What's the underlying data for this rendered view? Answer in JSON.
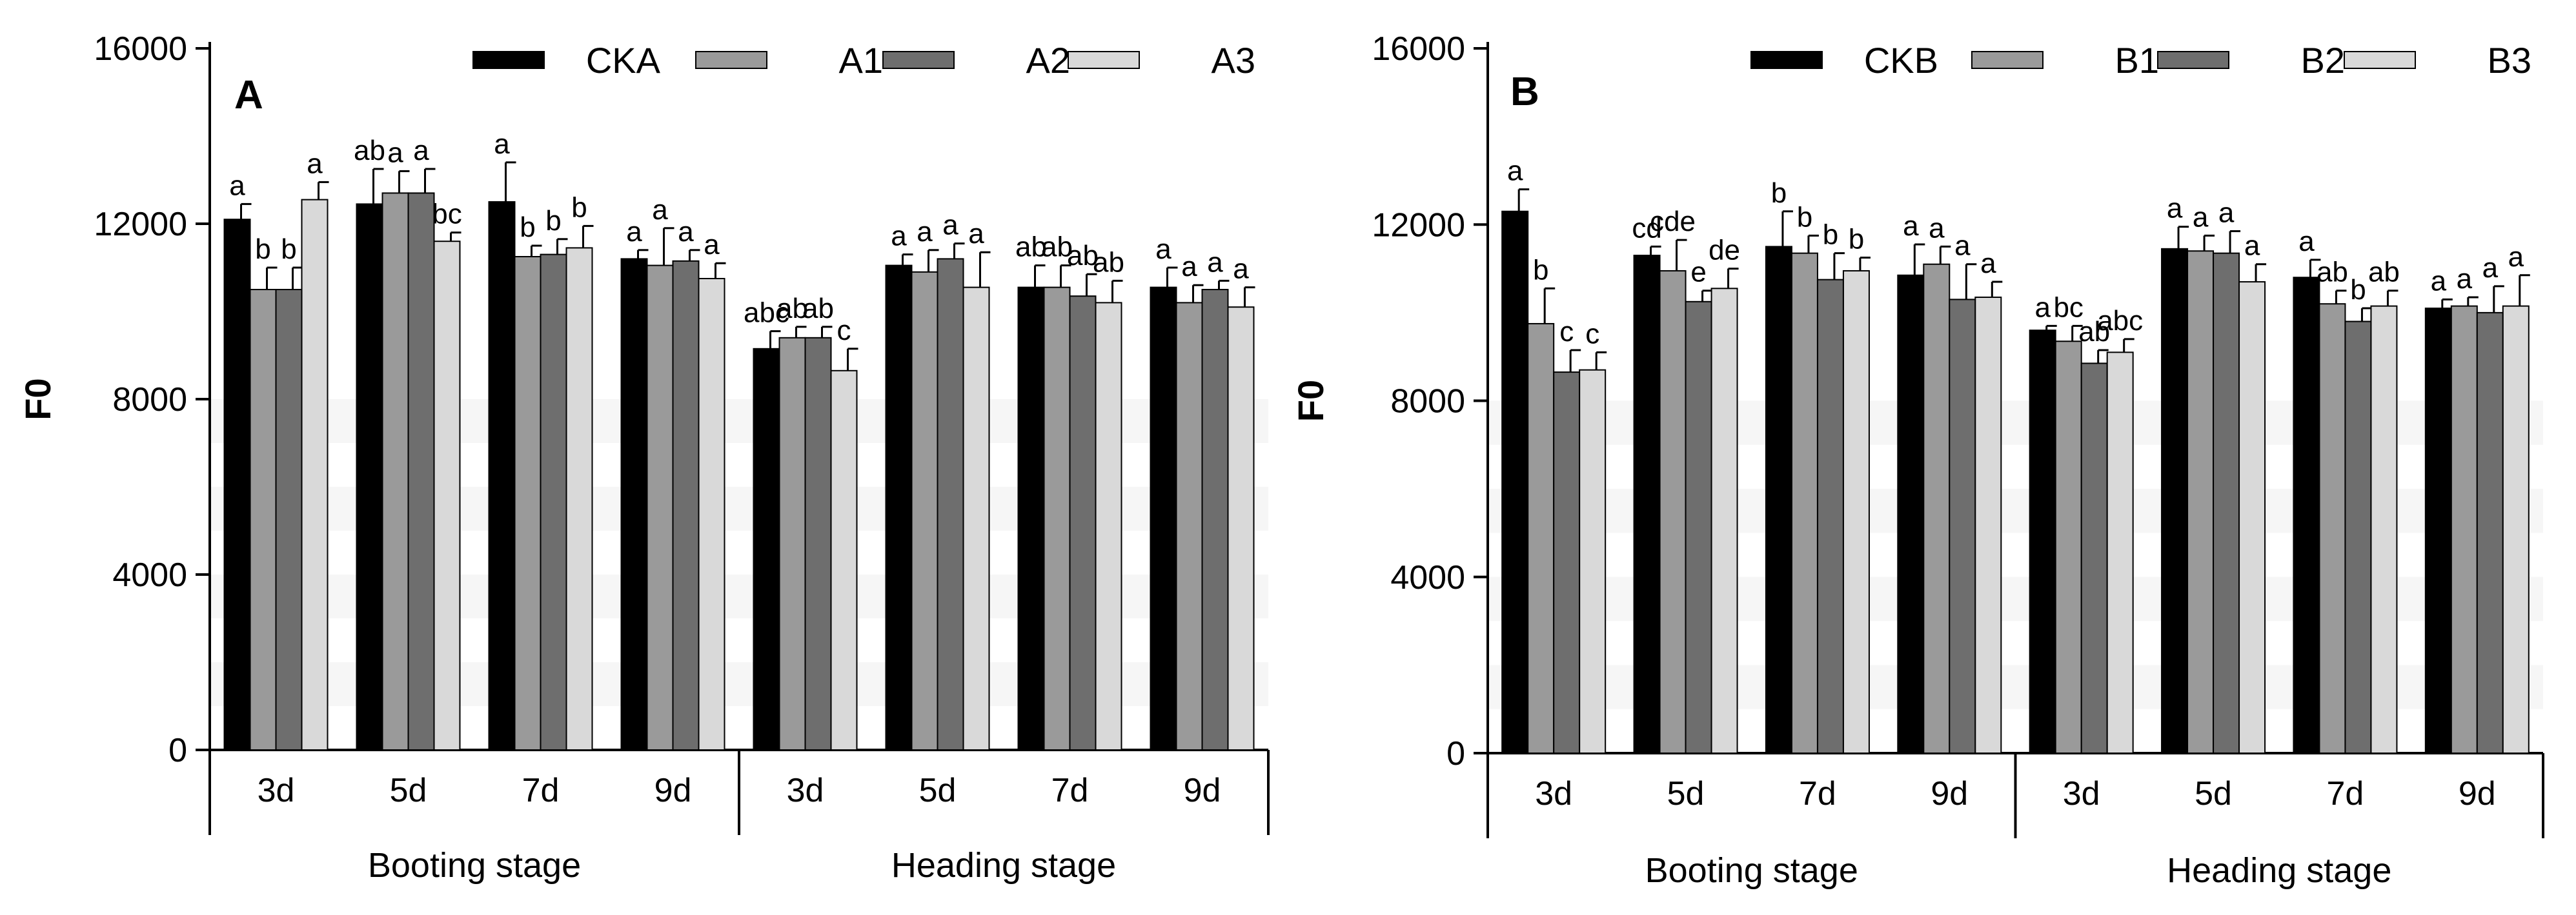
{
  "chart_data": [
    {
      "type": "bar",
      "panel_label": "A",
      "ylabel": "F0",
      "ylim": [
        0,
        16000
      ],
      "yticks": [
        "0",
        "4000",
        "8000",
        "12000",
        "16000"
      ],
      "legend_position": "top-right",
      "categories": [
        "3d",
        "5d",
        "7d",
        "9d",
        "3d",
        "5d",
        "7d",
        "9d"
      ],
      "groups": [
        {
          "label": "Booting stage"
        },
        {
          "label": "Heading stage"
        }
      ],
      "series": [
        {
          "name": "CKA",
          "color": "#000000",
          "values": [
            12100,
            12450,
            12500,
            11200,
            9150,
            11050,
            10550,
            10550
          ],
          "errors": [
            350,
            800,
            900,
            200,
            400,
            250,
            500,
            450
          ],
          "letters": [
            "a",
            "ab",
            "a",
            "a",
            "abc",
            "a",
            "ab",
            "a"
          ]
        },
        {
          "name": "A1",
          "color": "#9a9a9a",
          "values": [
            10500,
            12700,
            11250,
            11050,
            9400,
            10900,
            10550,
            10200
          ],
          "errors": [
            500,
            500,
            250,
            850,
            250,
            500,
            500,
            400
          ],
          "letters": [
            "b",
            "a",
            "b",
            "a",
            "ab",
            "a",
            "ab",
            "a"
          ]
        },
        {
          "name": "A2",
          "color": "#6e6e6e",
          "values": [
            10500,
            12700,
            11300,
            11150,
            9400,
            11200,
            10350,
            10500
          ],
          "errors": [
            500,
            550,
            350,
            250,
            250,
            350,
            500,
            200
          ],
          "letters": [
            "b",
            "a",
            "b",
            "a",
            "ab",
            "a",
            "ab",
            "a"
          ]
        },
        {
          "name": "A3",
          "color": "#d9d9d9",
          "values": [
            12550,
            11600,
            11450,
            10750,
            8650,
            10550,
            10200,
            10100
          ],
          "errors": [
            400,
            200,
            500,
            350,
            500,
            800,
            500,
            450
          ],
          "letters": [
            "a",
            "bc",
            "b",
            "a",
            "c",
            "a",
            "ab",
            "a"
          ]
        }
      ]
    },
    {
      "type": "bar",
      "panel_label": "B",
      "ylabel": "F0",
      "ylim": [
        0,
        16000
      ],
      "yticks": [
        "0",
        "4000",
        "8000",
        "12000",
        "16000"
      ],
      "legend_position": "top-right",
      "categories": [
        "3d",
        "5d",
        "7d",
        "9d",
        "3d",
        "5d",
        "7d",
        "9d"
      ],
      "groups": [
        {
          "label": "Booting stage"
        },
        {
          "label": "Heading stage"
        }
      ],
      "series": [
        {
          "name": "CKB",
          "color": "#000000",
          "values": [
            12300,
            11300,
            11500,
            10850,
            9600,
            11450,
            10800,
            10100
          ],
          "errors": [
            500,
            200,
            800,
            700,
            100,
            500,
            400,
            200
          ],
          "letters": [
            "a",
            "cd",
            "b",
            "a",
            "a",
            "a",
            "a",
            "a"
          ]
        },
        {
          "name": "B1",
          "color": "#9a9a9a",
          "values": [
            9750,
            10950,
            11350,
            11100,
            9350,
            11400,
            10200,
            10150
          ],
          "errors": [
            800,
            700,
            400,
            400,
            350,
            350,
            300,
            200
          ],
          "letters": [
            "b",
            "cde",
            "b",
            "a",
            "bc",
            "a",
            "ab",
            "a"
          ]
        },
        {
          "name": "B2",
          "color": "#6e6e6e",
          "values": [
            8650,
            10250,
            10750,
            10300,
            8850,
            11350,
            9800,
            10000
          ],
          "errors": [
            500,
            250,
            600,
            800,
            300,
            500,
            300,
            600
          ],
          "letters": [
            "c",
            "e",
            "b",
            "a",
            "ab",
            "a",
            "b",
            "a"
          ]
        },
        {
          "name": "B3",
          "color": "#d9d9d9",
          "values": [
            8700,
            10550,
            10950,
            10350,
            9100,
            10700,
            10150,
            10150
          ],
          "errors": [
            400,
            450,
            300,
            350,
            300,
            400,
            350,
            700
          ],
          "letters": [
            "c",
            "de",
            "b",
            "a",
            "abc",
            "a",
            "ab",
            "a"
          ]
        }
      ]
    }
  ]
}
